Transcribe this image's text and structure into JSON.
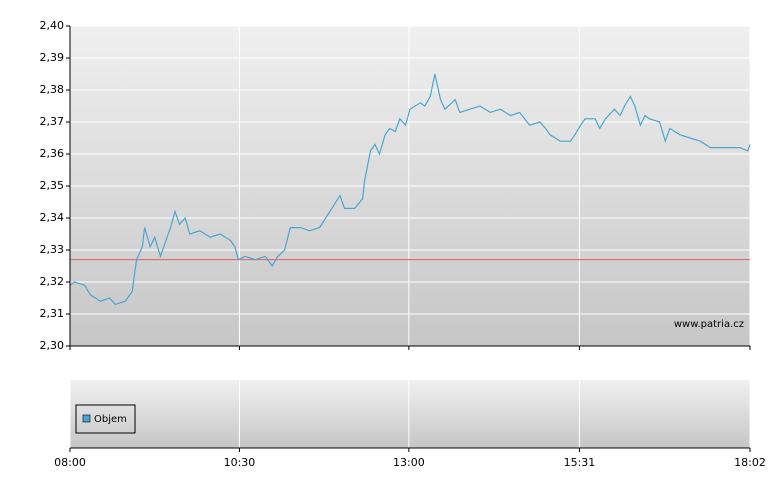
{
  "chart_data": {
    "type": "line",
    "x": [
      "08:00",
      "08:04",
      "08:13",
      "08:18",
      "08:27",
      "08:35",
      "08:40",
      "08:49",
      "08:55",
      "08:59",
      "09:04",
      "09:06",
      "09:11",
      "09:15",
      "09:20",
      "09:24",
      "09:29",
      "09:33",
      "09:37",
      "09:42",
      "09:46",
      "09:55",
      "10:04",
      "10:13",
      "10:22",
      "10:26",
      "10:29",
      "10:35",
      "10:44",
      "10:53",
      "10:59",
      "11:04",
      "11:10",
      "11:15",
      "11:24",
      "11:32",
      "11:41",
      "11:50",
      "11:59",
      "12:03",
      "12:12",
      "12:19",
      "12:21",
      "12:26",
      "12:30",
      "12:34",
      "12:39",
      "12:43",
      "12:48",
      "12:52",
      "12:57",
      "13:01",
      "13:10",
      "13:14",
      "13:19",
      "13:23",
      "13:28",
      "13:32",
      "13:41",
      "13:45",
      "13:54",
      "14:03",
      "14:12",
      "14:21",
      "14:30",
      "14:38",
      "14:47",
      "14:56",
      "15:01",
      "15:05",
      "15:14",
      "15:23",
      "15:27",
      "15:32",
      "15:36",
      "15:40",
      "15:45",
      "15:49",
      "15:54",
      "16:02",
      "16:07",
      "16:11",
      "16:16",
      "16:20",
      "16:25",
      "16:29",
      "16:33",
      "16:42",
      "16:47",
      "16:51",
      "17:00",
      "17:09",
      "17:18",
      "17:27",
      "17:35",
      "17:53",
      "18:00",
      "18:02"
    ],
    "series": [
      {
        "color": "#4aa6cf",
        "values": [
          2.319,
          2.32,
          2.319,
          2.316,
          2.314,
          2.315,
          2.313,
          2.314,
          2.317,
          2.327,
          2.331,
          2.337,
          2.331,
          2.334,
          2.328,
          2.332,
          2.337,
          2.342,
          2.338,
          2.34,
          2.335,
          2.336,
          2.334,
          2.335,
          2.333,
          2.331,
          2.327,
          2.328,
          2.327,
          2.328,
          2.325,
          2.328,
          2.33,
          2.337,
          2.337,
          2.336,
          2.337,
          2.342,
          2.347,
          2.343,
          2.343,
          2.346,
          2.352,
          2.361,
          2.363,
          2.36,
          2.366,
          2.368,
          2.367,
          2.371,
          2.369,
          2.374,
          2.376,
          2.375,
          2.378,
          2.385,
          2.377,
          2.374,
          2.377,
          2.373,
          2.374,
          2.375,
          2.373,
          2.374,
          2.372,
          2.373,
          2.369,
          2.37,
          2.368,
          2.366,
          2.364,
          2.364,
          2.366,
          2.369,
          2.371,
          2.371,
          2.371,
          2.368,
          2.371,
          2.374,
          2.372,
          2.375,
          2.378,
          2.375,
          2.369,
          2.372,
          2.371,
          2.37,
          2.364,
          2.368,
          2.366,
          2.365,
          2.364,
          2.362,
          2.362,
          2.362,
          2.361,
          2.363
        ]
      }
    ],
    "xlim": [
      "08:00",
      "18:02"
    ],
    "xticks": [
      "08:00",
      "10:30",
      "13:00",
      "15:31",
      "18:02"
    ],
    "ylim": [
      2.3,
      2.4
    ],
    "yticks": [
      {
        "value": 2.3,
        "label": "2,30"
      },
      {
        "value": 2.31,
        "label": "2,31"
      },
      {
        "value": 2.32,
        "label": "2,32"
      },
      {
        "value": 2.33,
        "label": "2,33"
      },
      {
        "value": 2.34,
        "label": "2,34"
      },
      {
        "value": 2.35,
        "label": "2,35"
      },
      {
        "value": 2.36,
        "label": "2,36"
      },
      {
        "value": 2.37,
        "label": "2,37"
      },
      {
        "value": 2.38,
        "label": "2,38"
      },
      {
        "value": 2.39,
        "label": "2,39"
      },
      {
        "value": 2.4,
        "label": "2,40"
      }
    ],
    "reference_line": {
      "value": 2.327,
      "color": "#e06060"
    },
    "grid": true,
    "volume_legend": {
      "label": "Objem",
      "color": "#4aa6cf"
    },
    "watermark": "www.patria.cz"
  }
}
